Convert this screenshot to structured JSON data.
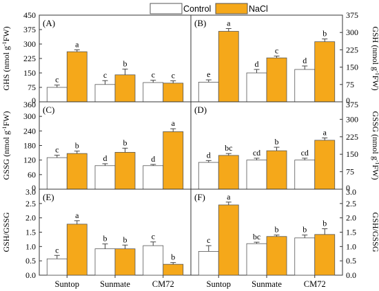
{
  "legend": {
    "control": "Control",
    "nacl": "NaCl"
  },
  "colors": {
    "control": "#ffffff",
    "nacl": "#f5a81a",
    "stroke": "#555555",
    "axis": "#333333"
  },
  "chart_data": [
    {
      "type": "bar",
      "panel": "(A)",
      "ylabel": "GHS (nmol g",
      "ylabel_unit": "FW)",
      "ylim": [
        0,
        450
      ],
      "yticks": [
        0,
        75,
        150,
        225,
        300,
        375,
        450
      ],
      "yaxis_side": "left",
      "categories": [
        "Suntop",
        "Sunmate",
        "CM72"
      ],
      "series": [
        {
          "name": "Control",
          "values": [
            75,
            90,
            100
          ],
          "errors": [
            12,
            20,
            12
          ],
          "letters": [
            "c",
            "c",
            "c"
          ]
        },
        {
          "name": "NaCl",
          "values": [
            260,
            140,
            97
          ],
          "errors": [
            10,
            30,
            12
          ],
          "letters": [
            "a",
            "b",
            "c"
          ]
        }
      ]
    },
    {
      "type": "bar",
      "panel": "(B)",
      "ylabel": "GSH (nmol g",
      "ylabel_unit": "FW)",
      "ylim": [
        0,
        375
      ],
      "yticks": [
        0,
        75,
        150,
        225,
        300,
        375
      ],
      "yaxis_side": "right",
      "categories": [
        "Suntop",
        "Sunmate",
        "CM72"
      ],
      "series": [
        {
          "name": "Control",
          "values": [
            85,
            125,
            140
          ],
          "errors": [
            10,
            15,
            15
          ],
          "letters": [
            "e",
            "d",
            "d"
          ]
        },
        {
          "name": "NaCl",
          "values": [
            305,
            190,
            260
          ],
          "errors": [
            12,
            8,
            12
          ],
          "letters": [
            "a",
            "c",
            "b"
          ]
        }
      ]
    },
    {
      "type": "bar",
      "panel": "(C)",
      "ylabel": "GSSG (nmol g",
      "ylabel_unit": "FW)",
      "ylim": [
        0,
        360
      ],
      "yticks": [
        0,
        60,
        120,
        180,
        240,
        300,
        360
      ],
      "yaxis_side": "left",
      "categories": [
        "Suntop",
        "Sunmate",
        "CM72"
      ],
      "series": [
        {
          "name": "Control",
          "values": [
            130,
            97,
            97
          ],
          "errors": [
            10,
            8,
            5
          ],
          "letters": [
            "c",
            "d",
            "d"
          ]
        },
        {
          "name": "NaCl",
          "values": [
            147,
            152,
            237
          ],
          "errors": [
            10,
            17,
            12
          ],
          "letters": [
            "b",
            "b",
            "a"
          ]
        }
      ]
    },
    {
      "type": "bar",
      "panel": "(D)",
      "ylabel": "GSSG (nmol g",
      "ylabel_unit": "FW)",
      "ylim": [
        0,
        375
      ],
      "yticks": [
        0,
        75,
        150,
        225,
        300,
        375
      ],
      "yaxis_side": "right",
      "categories": [
        "Suntop",
        "Sunmate",
        "CM72"
      ],
      "series": [
        {
          "name": "Control",
          "values": [
            115,
            125,
            125
          ],
          "errors": [
            8,
            8,
            8
          ],
          "letters": [
            "d",
            "cd",
            "cd"
          ]
        },
        {
          "name": "NaCl",
          "values": [
            145,
            165,
            210
          ],
          "errors": [
            8,
            15,
            10
          ],
          "letters": [
            "bc",
            "b",
            "a"
          ]
        }
      ]
    },
    {
      "type": "bar",
      "panel": "(E)",
      "ylabel": "GSH/GSSG",
      "ylim": [
        0,
        3.0
      ],
      "yticks": [
        0,
        0.5,
        1.0,
        1.5,
        2.0,
        2.5,
        3.0
      ],
      "yaxis_side": "left",
      "categories": [
        "Suntop",
        "Sunmate",
        "CM72"
      ],
      "series": [
        {
          "name": "Control",
          "values": [
            0.57,
            0.92,
            1.03
          ],
          "errors": [
            0.12,
            0.17,
            0.13
          ],
          "letters": [
            "c",
            "b",
            "c"
          ]
        },
        {
          "name": "NaCl",
          "values": [
            1.78,
            0.92,
            0.38
          ],
          "errors": [
            0.12,
            0.13,
            0.06
          ],
          "letters": [
            "a",
            "b",
            "b"
          ]
        }
      ]
    },
    {
      "type": "bar",
      "panel": "(F)",
      "ylabel": "GSH/GSSG",
      "ylim": [
        0,
        3.0
      ],
      "yticks": [
        0,
        0.5,
        1.0,
        1.5,
        2.0,
        2.5,
        3.0
      ],
      "yaxis_side": "right",
      "categories": [
        "Suntop",
        "Sunmate",
        "CM72"
      ],
      "series": [
        {
          "name": "Control",
          "values": [
            0.83,
            1.1,
            1.3
          ],
          "errors": [
            0.2,
            0.05,
            0.1
          ],
          "letters": [
            "c",
            "bc",
            "b"
          ]
        },
        {
          "name": "NaCl",
          "values": [
            2.45,
            1.35,
            1.42
          ],
          "errors": [
            0.1,
            0.05,
            0.2
          ],
          "letters": [
            "a",
            "b",
            "b"
          ]
        }
      ]
    }
  ]
}
